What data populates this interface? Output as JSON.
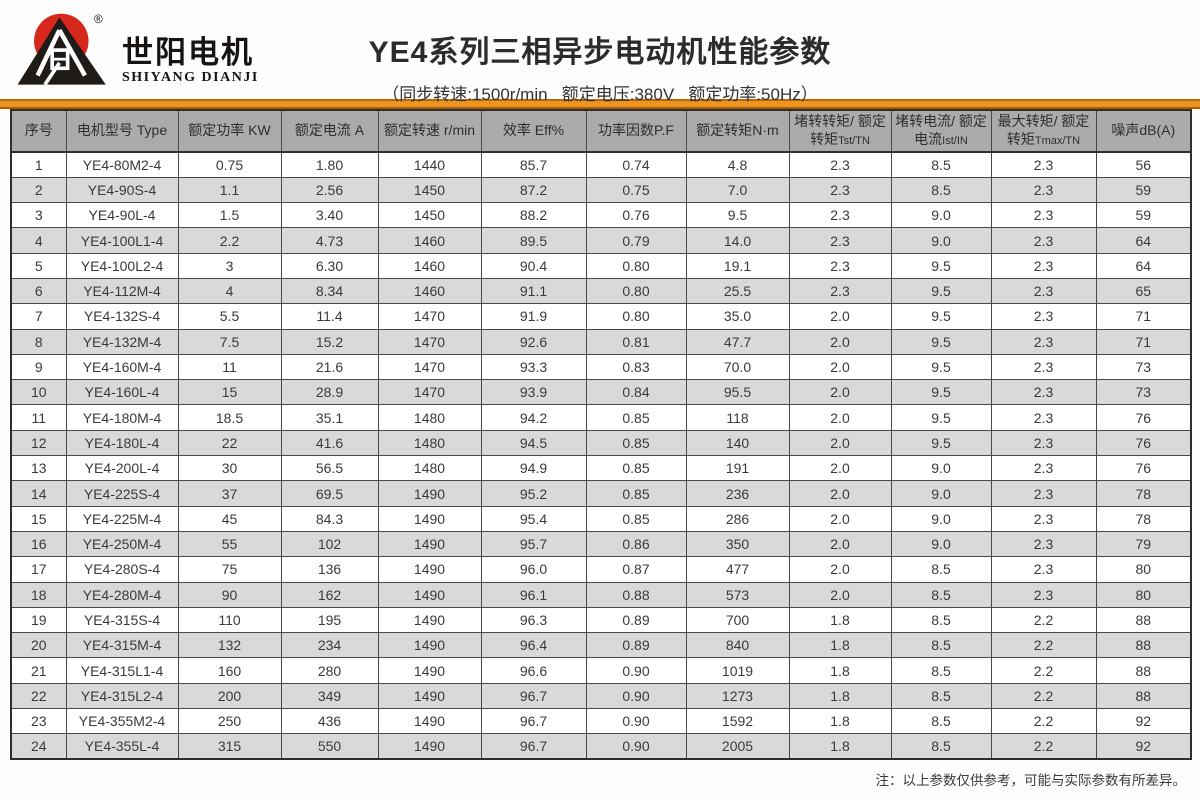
{
  "brand": {
    "name_cn": "世阳电机",
    "name_en": "SHIYANG DIANJI",
    "registered_mark": "®",
    "logo_red": "#d7281e",
    "logo_black": "#1f1b17"
  },
  "header": {
    "title": "YE4系列三相异步电动机性能参数",
    "subtitle": "（同步转速:1500r/min   额定电压:380V   额定功率:50Hz）"
  },
  "colors": {
    "accent_orange": "#ef941f",
    "accent_orange_dark": "#b4690e",
    "header_gray": "#ababab",
    "stripe_gray": "#d9d9d9",
    "border_dark": "#2e2e2e",
    "text": "#3a3a3a"
  },
  "table": {
    "headers": [
      {
        "label": "序号",
        "sub": ""
      },
      {
        "label": "电机型号 Type",
        "sub": ""
      },
      {
        "label": "额定功率 KW",
        "sub": ""
      },
      {
        "label": "额定电流 A",
        "sub": ""
      },
      {
        "label": "额定转速 r/min",
        "sub": ""
      },
      {
        "label": "效率 Eff%",
        "sub": ""
      },
      {
        "label": "功率因数P.F",
        "sub": ""
      },
      {
        "label": "额定转矩N·m",
        "sub": ""
      },
      {
        "label": "堵转转矩/ 额定转矩",
        "sub": "Tst/TN"
      },
      {
        "label": "堵转电流/ 额定电流",
        "sub": "Ist/IN"
      },
      {
        "label": "最大转矩/ 额定转矩",
        "sub": "Tmax/TN"
      },
      {
        "label": "噪声dB(A)",
        "sub": ""
      }
    ],
    "rows": [
      [
        "1",
        "YE4-80M2-4",
        "0.75",
        "1.80",
        "1440",
        "85.7",
        "0.74",
        "4.8",
        "2.3",
        "8.5",
        "2.3",
        "56"
      ],
      [
        "2",
        "YE4-90S-4",
        "1.1",
        "2.56",
        "1450",
        "87.2",
        "0.75",
        "7.0",
        "2.3",
        "8.5",
        "2.3",
        "59"
      ],
      [
        "3",
        "YE4-90L-4",
        "1.5",
        "3.40",
        "1450",
        "88.2",
        "0.76",
        "9.5",
        "2.3",
        "9.0",
        "2.3",
        "59"
      ],
      [
        "4",
        "YE4-100L1-4",
        "2.2",
        "4.73",
        "1460",
        "89.5",
        "0.79",
        "14.0",
        "2.3",
        "9.0",
        "2.3",
        "64"
      ],
      [
        "5",
        "YE4-100L2-4",
        "3",
        "6.30",
        "1460",
        "90.4",
        "0.80",
        "19.1",
        "2.3",
        "9.5",
        "2.3",
        "64"
      ],
      [
        "6",
        "YE4-112M-4",
        "4",
        "8.34",
        "1460",
        "91.1",
        "0.80",
        "25.5",
        "2.3",
        "9.5",
        "2.3",
        "65"
      ],
      [
        "7",
        "YE4-132S-4",
        "5.5",
        "11.4",
        "1470",
        "91.9",
        "0.80",
        "35.0",
        "2.0",
        "9.5",
        "2.3",
        "71"
      ],
      [
        "8",
        "YE4-132M-4",
        "7.5",
        "15.2",
        "1470",
        "92.6",
        "0.81",
        "47.7",
        "2.0",
        "9.5",
        "2.3",
        "71"
      ],
      [
        "9",
        "YE4-160M-4",
        "11",
        "21.6",
        "1470",
        "93.3",
        "0.83",
        "70.0",
        "2.0",
        "9.5",
        "2.3",
        "73"
      ],
      [
        "10",
        "YE4-160L-4",
        "15",
        "28.9",
        "1470",
        "93.9",
        "0.84",
        "95.5",
        "2.0",
        "9.5",
        "2.3",
        "73"
      ],
      [
        "11",
        "YE4-180M-4",
        "18.5",
        "35.1",
        "1480",
        "94.2",
        "0.85",
        "118",
        "2.0",
        "9.5",
        "2.3",
        "76"
      ],
      [
        "12",
        "YE4-180L-4",
        "22",
        "41.6",
        "1480",
        "94.5",
        "0.85",
        "140",
        "2.0",
        "9.5",
        "2.3",
        "76"
      ],
      [
        "13",
        "YE4-200L-4",
        "30",
        "56.5",
        "1480",
        "94.9",
        "0.85",
        "191",
        "2.0",
        "9.0",
        "2.3",
        "76"
      ],
      [
        "14",
        "YE4-225S-4",
        "37",
        "69.5",
        "1490",
        "95.2",
        "0.85",
        "236",
        "2.0",
        "9.0",
        "2.3",
        "78"
      ],
      [
        "15",
        "YE4-225M-4",
        "45",
        "84.3",
        "1490",
        "95.4",
        "0.85",
        "286",
        "2.0",
        "9.0",
        "2.3",
        "78"
      ],
      [
        "16",
        "YE4-250M-4",
        "55",
        "102",
        "1490",
        "95.7",
        "0.86",
        "350",
        "2.0",
        "9.0",
        "2.3",
        "79"
      ],
      [
        "17",
        "YE4-280S-4",
        "75",
        "136",
        "1490",
        "96.0",
        "0.87",
        "477",
        "2.0",
        "8.5",
        "2.3",
        "80"
      ],
      [
        "18",
        "YE4-280M-4",
        "90",
        "162",
        "1490",
        "96.1",
        "0.88",
        "573",
        "2.0",
        "8.5",
        "2.3",
        "80"
      ],
      [
        "19",
        "YE4-315S-4",
        "110",
        "195",
        "1490",
        "96.3",
        "0.89",
        "700",
        "1.8",
        "8.5",
        "2.2",
        "88"
      ],
      [
        "20",
        "YE4-315M-4",
        "132",
        "234",
        "1490",
        "96.4",
        "0.89",
        "840",
        "1.8",
        "8.5",
        "2.2",
        "88"
      ],
      [
        "21",
        "YE4-315L1-4",
        "160",
        "280",
        "1490",
        "96.6",
        "0.90",
        "1019",
        "1.8",
        "8.5",
        "2.2",
        "88"
      ],
      [
        "22",
        "YE4-315L2-4",
        "200",
        "349",
        "1490",
        "96.7",
        "0.90",
        "1273",
        "1.8",
        "8.5",
        "2.2",
        "88"
      ],
      [
        "23",
        "YE4-355M2-4",
        "250",
        "436",
        "1490",
        "96.7",
        "0.90",
        "1592",
        "1.8",
        "8.5",
        "2.2",
        "92"
      ],
      [
        "24",
        "YE4-355L-4",
        "315",
        "550",
        "1490",
        "96.7",
        "0.90",
        "2005",
        "1.8",
        "8.5",
        "2.2",
        "92"
      ]
    ]
  },
  "footer": {
    "note": "注：以上参数仅供参考，可能与实际参数有所差异。"
  }
}
